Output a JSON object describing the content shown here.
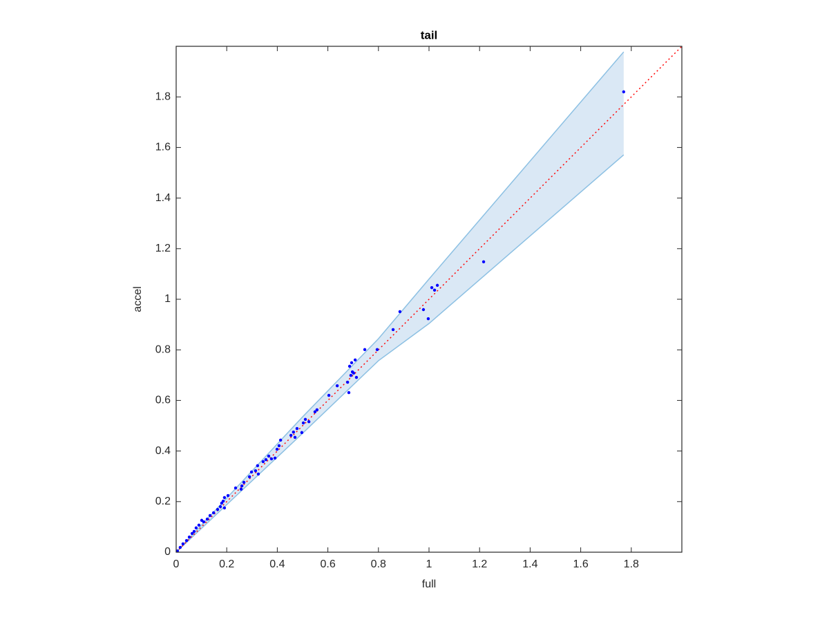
{
  "chart_data": {
    "type": "scatter",
    "title": "tail",
    "xlabel": "full",
    "ylabel": "accel",
    "xlim": [
      0,
      2
    ],
    "ylim": [
      0,
      2
    ],
    "xticks": [
      0,
      0.2,
      0.4,
      0.6,
      0.8,
      1,
      1.2,
      1.4,
      1.6,
      1.8
    ],
    "yticks": [
      0,
      0.2,
      0.4,
      0.6,
      0.8,
      1,
      1.2,
      1.4,
      1.6,
      1.8
    ],
    "band": {
      "x": [
        0,
        0.5,
        0.8,
        1.0,
        1.77
      ],
      "upper": [
        0,
        0.535,
        0.844,
        1.08,
        1.978
      ],
      "lower": [
        0,
        0.47,
        0.757,
        0.904,
        1.571
      ],
      "color": "#dae8f5",
      "edge_color": "#8cc0e3"
    },
    "reference_line": {
      "x": [
        0,
        2
      ],
      "values": [
        0,
        2
      ],
      "color": "#ff0000"
    },
    "points": {
      "color": "#0000ff",
      "x": [
        1.77,
        1.216,
        1.033,
        1.011,
        1.022,
        0.885,
        0.978,
        0.997,
        0.858,
        0.795,
        0.746,
        0.708,
        0.694,
        0.686,
        0.697,
        0.691,
        0.702,
        0.713,
        0.678,
        0.683,
        0.637,
        0.604,
        0.549,
        0.525,
        0.511,
        0.503,
        0.497,
        0.557,
        0.478,
        0.464,
        0.47,
        0.454,
        0.413,
        0.407,
        0.399,
        0.391,
        0.377,
        0.366,
        0.355,
        0.344,
        0.322,
        0.325,
        0.314,
        0.298,
        0.29,
        0.268,
        0.26,
        0.257,
        0.235,
        0.205,
        0.191,
        0.186,
        0.18,
        0.175,
        0.191,
        0.164,
        0.148,
        0.134,
        0.123,
        0.109,
        0.101,
        0.09,
        0.079,
        0.071,
        0.063,
        0.052,
        0.041,
        0.027,
        0.016,
        0.005
      ],
      "values": [
        1.82,
        1.148,
        1.055,
        1.046,
        1.036,
        0.951,
        0.959,
        0.923,
        0.88,
        0.801,
        0.801,
        0.76,
        0.749,
        0.735,
        0.713,
        0.699,
        0.708,
        0.691,
        0.672,
        0.631,
        0.658,
        0.62,
        0.555,
        0.516,
        0.525,
        0.511,
        0.473,
        0.563,
        0.489,
        0.475,
        0.454,
        0.462,
        0.443,
        0.421,
        0.407,
        0.372,
        0.369,
        0.38,
        0.366,
        0.358,
        0.342,
        0.309,
        0.322,
        0.317,
        0.298,
        0.276,
        0.262,
        0.249,
        0.254,
        0.224,
        0.216,
        0.202,
        0.194,
        0.18,
        0.175,
        0.169,
        0.156,
        0.145,
        0.131,
        0.12,
        0.126,
        0.107,
        0.096,
        0.082,
        0.074,
        0.06,
        0.046,
        0.033,
        0.019,
        0.005
      ]
    }
  }
}
